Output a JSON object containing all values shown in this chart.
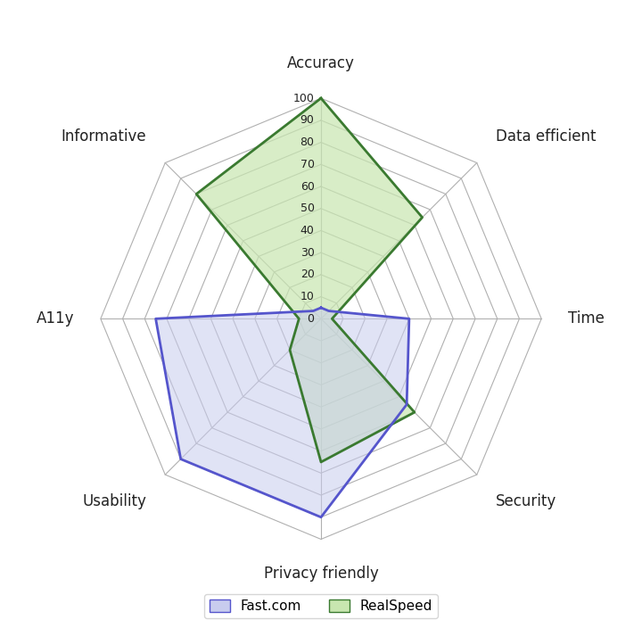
{
  "categories": [
    "Accuracy",
    "Data efficient",
    "Time",
    "Security",
    "Privacy friendly",
    "Usability",
    "A11y",
    "Informative"
  ],
  "realspeed_values": [
    100,
    65,
    5,
    60,
    65,
    20,
    10,
    80
  ],
  "fastcom_values": [
    5,
    5,
    40,
    55,
    90,
    90,
    75,
    5
  ],
  "realspeed_fill_color": "#c8e6b0",
  "realspeed_edge_color": "#3a7a30",
  "realspeed_fill_alpha": 0.7,
  "fastcom_fill_color": "#c8ccee",
  "fastcom_edge_color": "#5555cc",
  "fastcom_fill_alpha": 0.55,
  "grid_color": "#b0b0b0",
  "spoke_color": "#b0b0b0",
  "label_color": "#222222",
  "rmax": 100,
  "rstep": 10,
  "legend_labels": [
    "Fast.com",
    "RealSpeed"
  ],
  "background_color": "#ffffff",
  "label_fontsize": 12,
  "tick_fontsize": 9,
  "legend_fontsize": 11
}
